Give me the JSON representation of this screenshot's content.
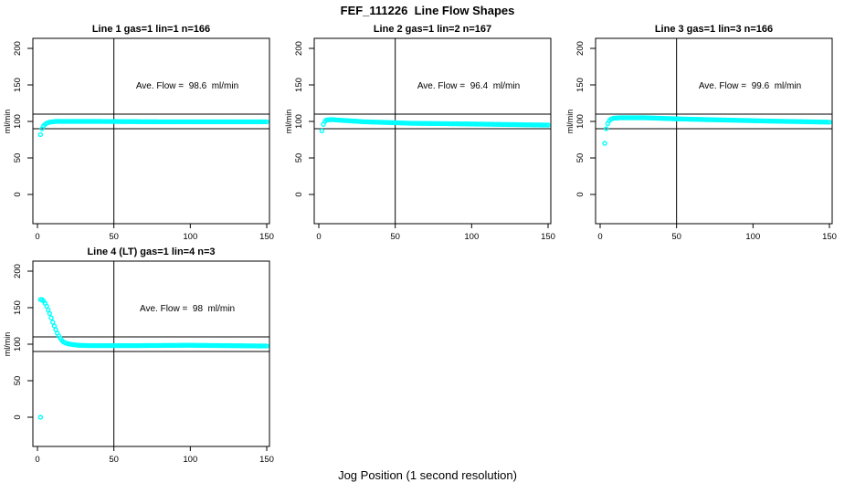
{
  "chart_data": {
    "type": "scatter",
    "title": "FEF_111226  Line Flow Shapes",
    "shared_xlabel": "Jog Position (1 second resolution)",
    "ylabel": "ml/min",
    "xlim": [
      0,
      150
    ],
    "ylim": [
      0,
      200
    ],
    "x_ticks": [
      0,
      50,
      100,
      150
    ],
    "y_ticks": [
      0,
      50,
      100,
      150,
      200
    ],
    "point_color": "#00ffff",
    "axis_color": "#000000",
    "ref_line_upper": 110,
    "ref_line_lower": 90,
    "vline_x": 50,
    "profile_format": "[jog_position, ml_per_min] anchor points of the plotted trace, linearly interpolated at 1-unit jog steps",
    "panels": [
      {
        "title": "Line 1 gas=1 lin=1 n=166",
        "gas": 1,
        "lin": 1,
        "n": 166,
        "ave_flow": 98.6,
        "ave_flow_label": "Ave. Flow =  98.6  ml/min",
        "outliers": [
          [
            2,
            82
          ]
        ],
        "profile": [
          [
            3,
            90
          ],
          [
            4,
            94
          ],
          [
            5,
            96
          ],
          [
            6,
            97.5
          ],
          [
            8,
            99
          ],
          [
            12,
            100
          ],
          [
            40,
            100
          ],
          [
            80,
            99.5
          ],
          [
            150,
            99.5
          ]
        ]
      },
      {
        "title": "Line 2 gas=1 lin=2 n=167",
        "gas": 1,
        "lin": 2,
        "n": 167,
        "ave_flow": 96.4,
        "ave_flow_label": "Ave. Flow =  96.4  ml/min",
        "outliers": [],
        "profile": [
          [
            2,
            87
          ],
          [
            3,
            96
          ],
          [
            4,
            100
          ],
          [
            5,
            102
          ],
          [
            9,
            102.5
          ],
          [
            15,
            101.5
          ],
          [
            30,
            99.5
          ],
          [
            60,
            97.5
          ],
          [
            100,
            96.5
          ],
          [
            150,
            95
          ]
        ]
      },
      {
        "title": "Line 3 gas=1 lin=3 n=166",
        "gas": 1,
        "lin": 3,
        "n": 166,
        "ave_flow": 99.6,
        "ave_flow_label": "Ave. Flow =  99.6  ml/min",
        "outliers": [
          [
            3,
            70
          ]
        ],
        "profile": [
          [
            4,
            90
          ],
          [
            5,
            97
          ],
          [
            6,
            101
          ],
          [
            7,
            103
          ],
          [
            9,
            104.5
          ],
          [
            13,
            105
          ],
          [
            30,
            105
          ],
          [
            50,
            103.5
          ],
          [
            80,
            102
          ],
          [
            110,
            100.5
          ],
          [
            150,
            99
          ]
        ]
      },
      {
        "title": "Line 4 (LT) gas=1 lin=4 n=3",
        "gas": 1,
        "lin": 4,
        "n": 3,
        "ave_flow": 98,
        "ave_flow_label": "Ave. Flow =  98  ml/min",
        "outliers": [
          [
            2,
            0
          ]
        ],
        "profile": [
          [
            2,
            161
          ],
          [
            3,
            161
          ],
          [
            4,
            159
          ],
          [
            5,
            156
          ],
          [
            6,
            152
          ],
          [
            7,
            147
          ],
          [
            8,
            142
          ],
          [
            9,
            136
          ],
          [
            10,
            130
          ],
          [
            11,
            125
          ],
          [
            12,
            120
          ],
          [
            13,
            115
          ],
          [
            14,
            111
          ],
          [
            15,
            108
          ],
          [
            16,
            105
          ],
          [
            17,
            103
          ],
          [
            18,
            102
          ],
          [
            20,
            100.5
          ],
          [
            23,
            99.5
          ],
          [
            27,
            98.5
          ],
          [
            35,
            98
          ],
          [
            60,
            98
          ],
          [
            100,
            98.5
          ],
          [
            150,
            97.5
          ]
        ]
      }
    ]
  }
}
